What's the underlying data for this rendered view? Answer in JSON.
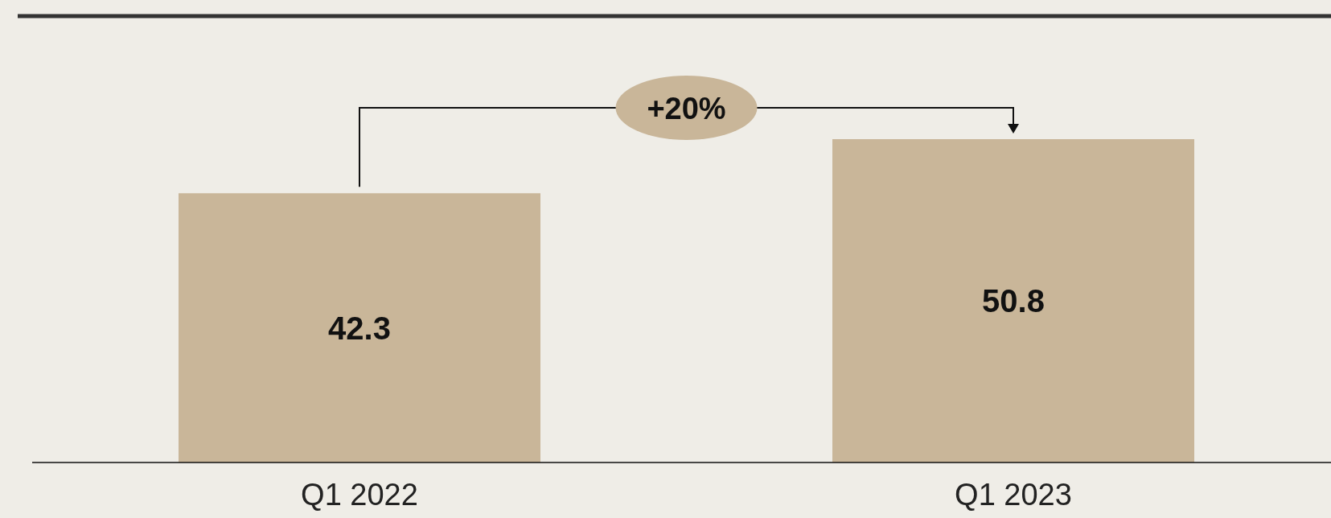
{
  "chart_data": {
    "type": "bar",
    "categories": [
      "Q1 2022",
      "Q1 2023"
    ],
    "values": [
      42.3,
      50.8
    ],
    "color": "#c9b699",
    "data_labels": true,
    "annotations": [
      "+20%"
    ]
  }
}
